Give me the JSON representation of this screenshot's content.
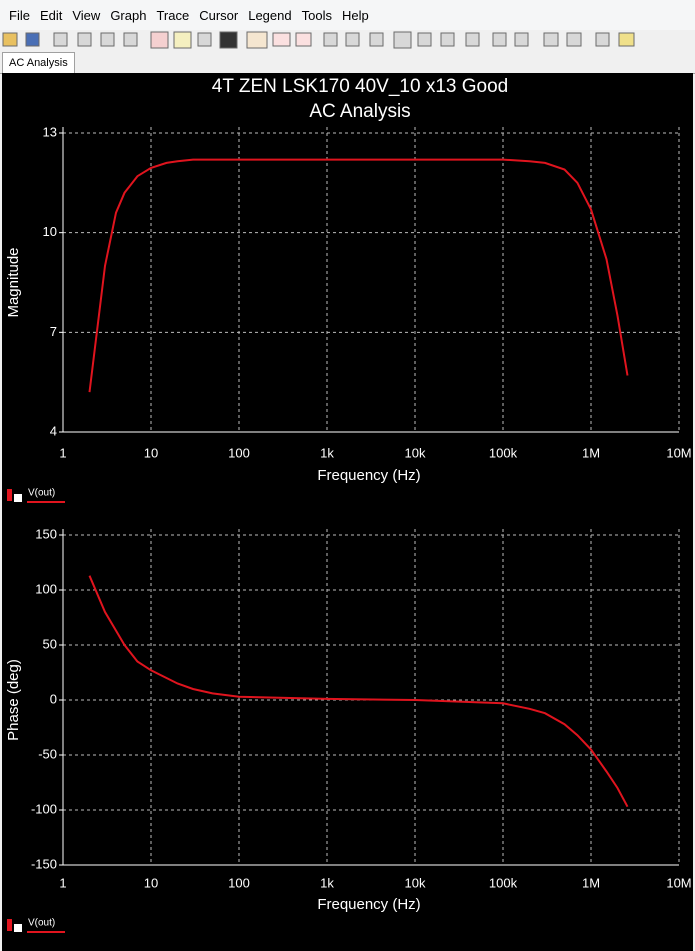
{
  "menu": [
    "File",
    "Edit",
    "View",
    "Graph",
    "Trace",
    "Cursor",
    "Legend",
    "Tools",
    "Help"
  ],
  "tab": "AC Analysis",
  "chart_data": [
    {
      "type": "line",
      "title": "4T ZEN LSK170 40V_10 x13 Good",
      "subtitle": "AC Analysis",
      "x_label": "Frequency (Hz)",
      "y_label": "Magnitude",
      "log_x": true,
      "grid": true,
      "x": [
        2,
        3,
        4,
        5,
        7,
        10,
        15,
        20,
        30,
        100,
        1000,
        10000,
        100000,
        200000,
        300000,
        500000,
        700000,
        1000000,
        1500000,
        2000000,
        2600000
      ],
      "series": [
        {
          "name": "V(out)",
          "color": "#e0141e",
          "values": [
            5.2,
            9.0,
            10.6,
            11.2,
            11.7,
            11.95,
            12.1,
            12.15,
            12.2,
            12.2,
            12.2,
            12.2,
            12.2,
            12.15,
            12.1,
            11.9,
            11.5,
            10.7,
            9.2,
            7.5,
            5.7
          ]
        }
      ],
      "xlim": [
        1,
        10000000
      ],
      "xticks": [
        1,
        10,
        100,
        {
          "value": 1000,
          "label": "1k"
        },
        {
          "value": 10000,
          "label": "10k"
        },
        {
          "value": 100000,
          "label": "100k"
        },
        {
          "value": 1000000,
          "label": "1M"
        },
        {
          "value": 10000000,
          "label": "10M"
        }
      ],
      "ylim": [
        4,
        13
      ],
      "yticks": [
        4,
        7,
        10,
        13
      ]
    },
    {
      "type": "line",
      "x_label": "Frequency (Hz)",
      "y_label": "Phase (deg)",
      "log_x": true,
      "grid": true,
      "x": [
        2,
        3,
        5,
        7,
        10,
        20,
        30,
        50,
        100,
        1000,
        10000,
        100000,
        200000,
        300000,
        500000,
        700000,
        1000000,
        1500000,
        2000000,
        2600000
      ],
      "series": [
        {
          "name": "V(out)",
          "color": "#e0141e",
          "values": [
            113,
            80,
            50,
            35,
            27,
            15,
            10,
            6,
            3,
            1,
            0,
            -3,
            -8,
            -12,
            -22,
            -32,
            -45,
            -65,
            -80,
            -97
          ]
        }
      ],
      "xlim": [
        1,
        10000000
      ],
      "xticks": [
        1,
        10,
        100,
        {
          "value": 1000,
          "label": "1k"
        },
        {
          "value": 10000,
          "label": "10k"
        },
        {
          "value": 100000,
          "label": "100k"
        },
        {
          "value": 1000000,
          "label": "1M"
        },
        {
          "value": 10000000,
          "label": "10M"
        }
      ],
      "ylim": [
        -150,
        150
      ],
      "yticks": [
        -150,
        -100,
        -50,
        0,
        50,
        100,
        150
      ]
    }
  ]
}
